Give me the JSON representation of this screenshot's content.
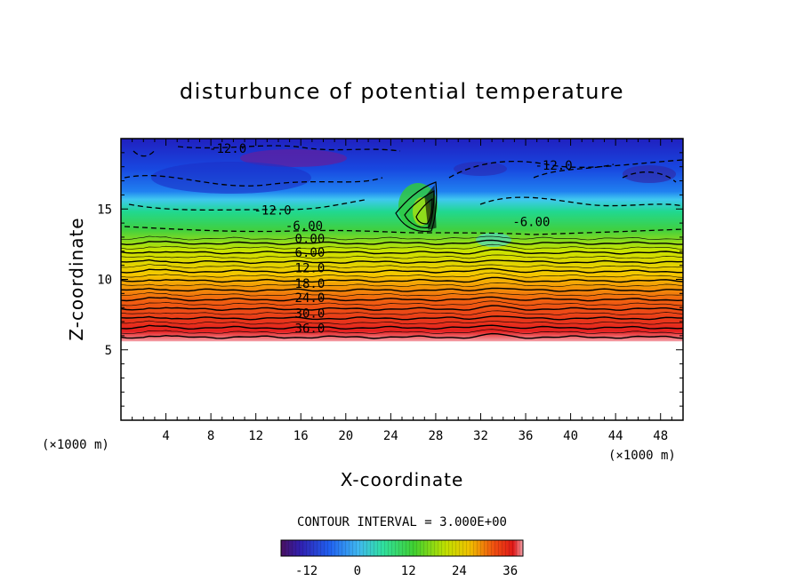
{
  "chart_data": {
    "type": "heatmap",
    "title": "disturbunce of potential temperature",
    "xlabel": "X-coordinate",
    "ylabel": "Z-coordinate",
    "x_unit": "(×1000 m)",
    "z_unit": "(×1000 m)",
    "xlim": [
      0,
      50
    ],
    "ylim": [
      0,
      20
    ],
    "x_ticks": [
      4,
      8,
      12,
      16,
      20,
      24,
      28,
      32,
      36,
      40,
      44,
      48
    ],
    "y_ticks": [
      5,
      10,
      15
    ],
    "contour_interval": "CONTOUR INTERVAL = 3.000E+00",
    "colorbar": {
      "min": -18,
      "max": 39,
      "ticks": [
        -12,
        0,
        12,
        24,
        36
      ]
    },
    "contour_labels": [
      {
        "text": "-12.0",
        "x": 9.5,
        "z": 19.0
      },
      {
        "text": "-12.0",
        "x": 13.5,
        "z": 14.6
      },
      {
        "text": "-12.0",
        "x": 38.5,
        "z": 17.8
      },
      {
        "text": "-6.00",
        "x": 36.5,
        "z": 13.8
      },
      {
        "text": "-6.00",
        "x": 16.3,
        "z": 13.5
      },
      {
        "text": "0.00",
        "x": 16.8,
        "z": 12.6
      },
      {
        "text": "6.00",
        "x": 16.8,
        "z": 11.6
      },
      {
        "text": "12.0",
        "x": 16.8,
        "z": 10.5
      },
      {
        "text": "18.0",
        "x": 16.8,
        "z": 9.4
      },
      {
        "text": "24.0",
        "x": 16.8,
        "z": 8.4
      },
      {
        "text": "30.0",
        "x": 16.8,
        "z": 7.3
      },
      {
        "text": "36.0",
        "x": 16.8,
        "z": 6.2
      }
    ],
    "data_region": {
      "x": [
        0,
        50
      ],
      "z": [
        5.6,
        20
      ]
    }
  }
}
